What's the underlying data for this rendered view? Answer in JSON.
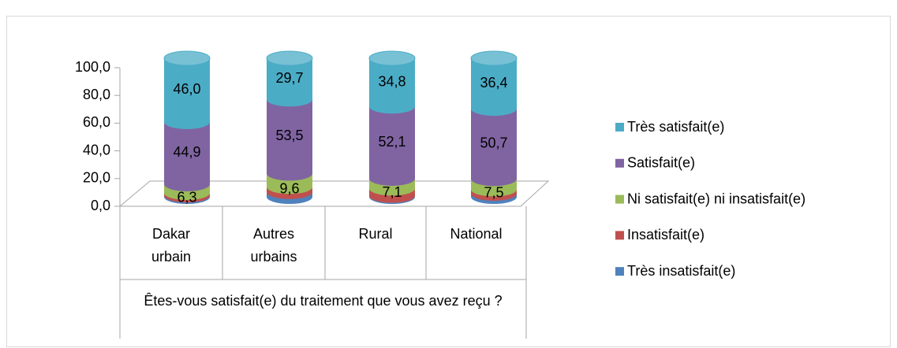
{
  "chart_data": {
    "type": "stacked_bar_3d",
    "categories": [
      "Dakar urbain",
      "Autres urbains",
      "Rural",
      "National"
    ],
    "xlabel": "Êtes-vous satisfait(e) du traitement que vous avez reçu ?",
    "ylim": [
      0,
      100
    ],
    "yticks": [
      {
        "value": 0,
        "label": "0,0"
      },
      {
        "value": 20,
        "label": "20,0"
      },
      {
        "value": 40,
        "label": "40,0"
      },
      {
        "value": 60,
        "label": "60,0"
      },
      {
        "value": 80,
        "label": "80,0"
      },
      {
        "value": 100,
        "label": "100,0"
      }
    ],
    "legend": "right",
    "series": [
      {
        "name": "Très insatisfait(e)",
        "color": "#4f81bd",
        "values": [
          1.0,
          3.5,
          0.8,
          2.3
        ]
      },
      {
        "name": "Insatisfait(e)",
        "color": "#c0504d",
        "values": [
          1.8,
          3.7,
          5.2,
          3.1
        ]
      },
      {
        "name": "Ni satisfait(e) ni insatisfait(e)",
        "color": "#9bbb59",
        "values": [
          6.3,
          9.6,
          7.1,
          7.5
        ],
        "value_labels": [
          "6,3",
          "9,6",
          "7,1",
          "7,5"
        ]
      },
      {
        "name": "Satisfait(e)",
        "color": "#8064a2",
        "values": [
          44.9,
          53.5,
          52.1,
          50.7
        ],
        "value_labels": [
          "44,9",
          "53,5",
          "52,1",
          "50,7"
        ]
      },
      {
        "name": "Très satisfait(e)",
        "color": "#4bacc6",
        "values": [
          46.0,
          29.7,
          34.8,
          36.4
        ],
        "value_labels": [
          "46,0",
          "29,7",
          "34,8",
          "36,4"
        ]
      }
    ]
  }
}
